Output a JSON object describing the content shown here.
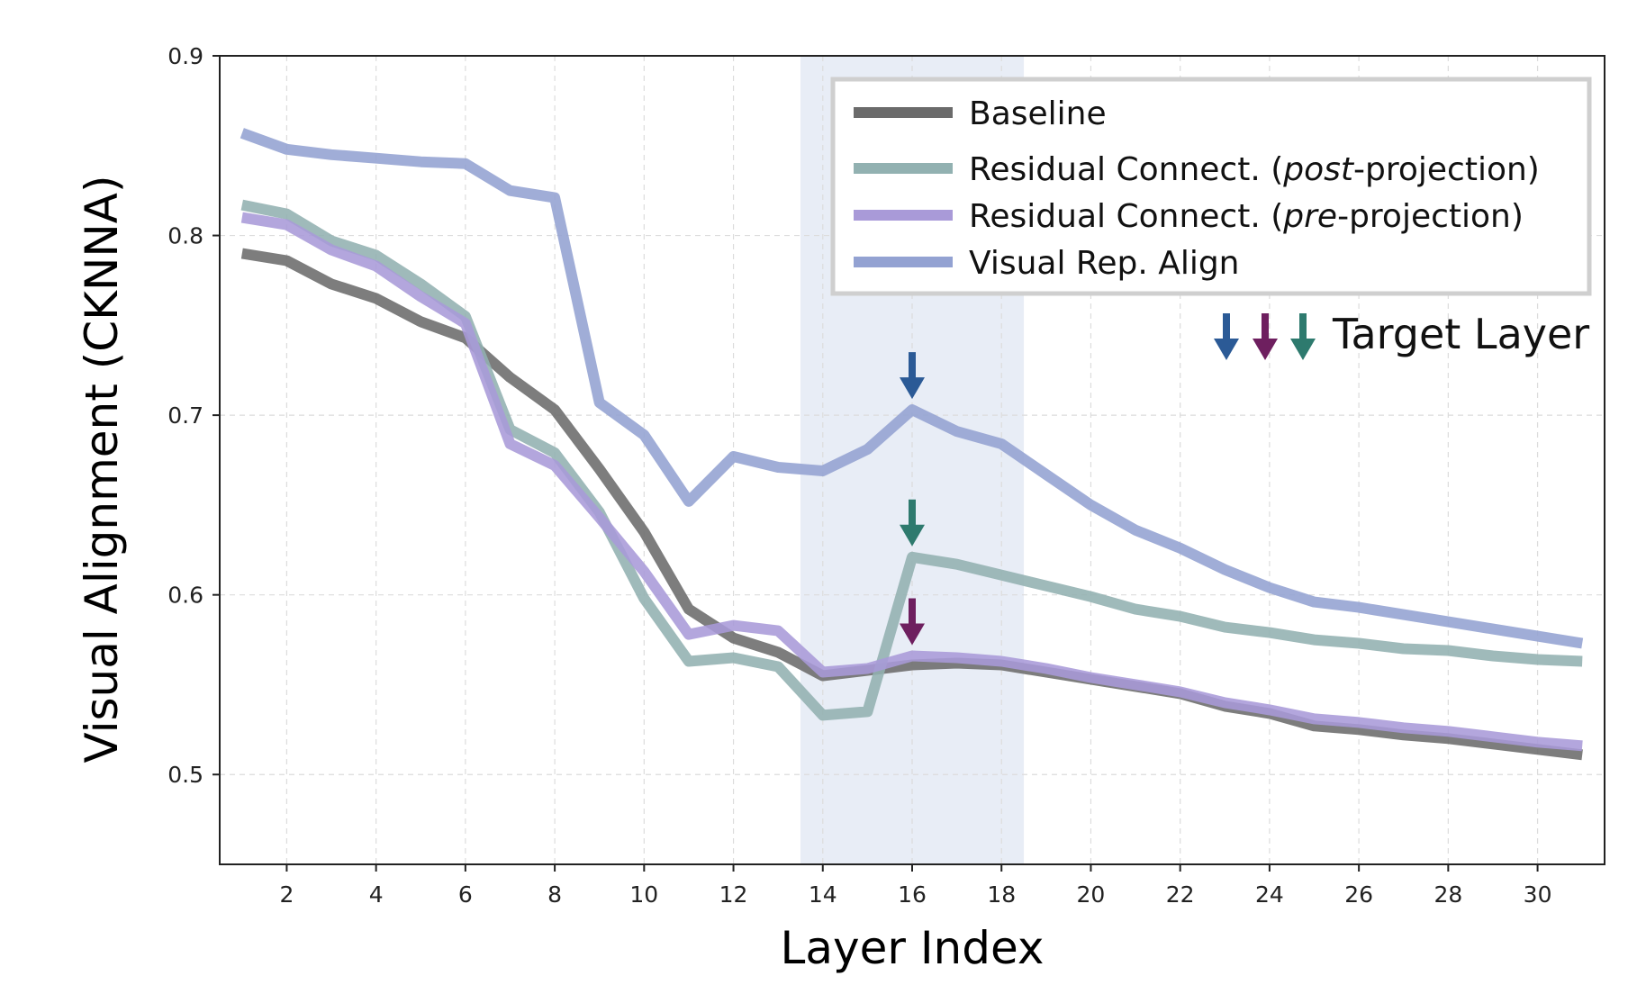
{
  "chart_data": {
    "type": "line",
    "xlabel": "Layer Index",
    "ylabel": "Visual Alignment (CKNNA)",
    "xlim": [
      0.5,
      31.5
    ],
    "ylim": [
      0.45,
      0.9
    ],
    "xticks": [
      2,
      4,
      6,
      8,
      10,
      12,
      14,
      16,
      18,
      20,
      22,
      24,
      26,
      28,
      30
    ],
    "yticks": [
      0.5,
      0.6,
      0.7,
      0.8,
      0.9
    ],
    "grid": true,
    "legend_position": "top-right",
    "highlight_band": {
      "x0": 13.5,
      "x1": 18.5,
      "color": "#e8edf6"
    },
    "x": [
      1,
      2,
      3,
      4,
      5,
      6,
      7,
      8,
      9,
      10,
      11,
      12,
      13,
      14,
      15,
      16,
      17,
      18,
      19,
      20,
      21,
      22,
      23,
      24,
      25,
      26,
      27,
      28,
      29,
      30,
      31
    ],
    "series": [
      {
        "name": "Baseline",
        "color": "#6b6b6b",
        "values": [
          0.79,
          0.786,
          0.773,
          0.765,
          0.752,
          0.743,
          0.721,
          0.703,
          0.67,
          0.635,
          0.592,
          0.576,
          0.568,
          0.555,
          0.558,
          0.561,
          0.562,
          0.561,
          0.557,
          0.553,
          0.549,
          0.545,
          0.538,
          0.534,
          0.527,
          0.525,
          0.522,
          0.52,
          0.517,
          0.514,
          0.511
        ]
      },
      {
        "name_parts": [
          "Residual Connect. (",
          "post",
          "-projection)"
        ],
        "color": "#92b1b1",
        "values": [
          0.817,
          0.812,
          0.797,
          0.789,
          0.773,
          0.755,
          0.692,
          0.679,
          0.646,
          0.598,
          0.563,
          0.565,
          0.56,
          0.533,
          0.535,
          0.621,
          0.617,
          0.611,
          0.605,
          0.599,
          0.592,
          0.588,
          0.582,
          0.579,
          0.575,
          0.573,
          0.57,
          0.569,
          0.566,
          0.564,
          0.563
        ]
      },
      {
        "name_parts": [
          "Residual Connect. (",
          "pre",
          "-projection)"
        ],
        "color": "#a99ad8",
        "values": [
          0.81,
          0.806,
          0.792,
          0.783,
          0.766,
          0.751,
          0.684,
          0.672,
          0.643,
          0.613,
          0.578,
          0.583,
          0.58,
          0.557,
          0.559,
          0.566,
          0.565,
          0.563,
          0.559,
          0.554,
          0.55,
          0.546,
          0.54,
          0.536,
          0.531,
          0.529,
          0.526,
          0.524,
          0.521,
          0.518,
          0.516
        ]
      },
      {
        "name": "Visual Rep. Align",
        "color": "#93a2d2",
        "values": [
          0.857,
          0.848,
          0.845,
          0.843,
          0.841,
          0.84,
          0.825,
          0.821,
          0.707,
          0.689,
          0.652,
          0.677,
          0.671,
          0.669,
          0.681,
          0.703,
          0.691,
          0.684,
          0.667,
          0.65,
          0.636,
          0.626,
          0.614,
          0.604,
          0.596,
          0.593,
          0.589,
          0.585,
          0.581,
          0.577,
          0.573
        ]
      }
    ],
    "target_layer": {
      "label": "Target Layer",
      "colors": [
        "#2b5a96",
        "#6e1f5f",
        "#2e7a6e"
      ],
      "markers": [
        {
          "x": 16,
          "y": 0.703,
          "color": "#2b5a96"
        },
        {
          "x": 16,
          "y": 0.621,
          "color": "#2e7a6e"
        },
        {
          "x": 16,
          "y": 0.566,
          "color": "#6e1f5f"
        }
      ]
    }
  }
}
